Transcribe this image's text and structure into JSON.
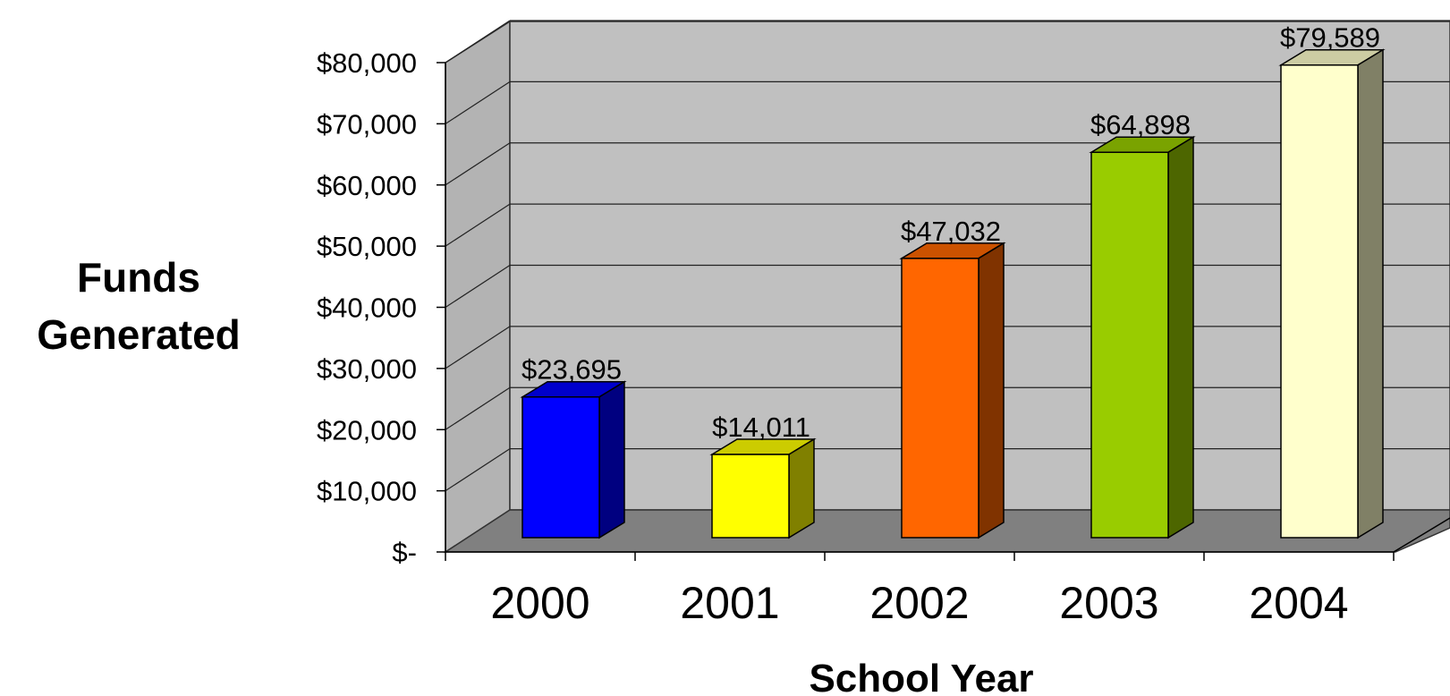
{
  "chart_data": {
    "type": "bar",
    "ylabel_line1": "Funds",
    "ylabel_line2": "Generated",
    "xlabel": "School Year",
    "categories": [
      "2000",
      "2001",
      "2002",
      "2003",
      "2004"
    ],
    "values": [
      23695,
      14011,
      47032,
      64898,
      79589
    ],
    "data_labels": [
      "$23,695",
      "$14,011",
      "$47,032",
      "$64,898",
      "$79,589"
    ],
    "yticks": [
      0,
      10000,
      20000,
      30000,
      40000,
      50000,
      60000,
      70000,
      80000
    ],
    "ytick_labels": [
      "$-",
      "$10,000",
      "$20,000",
      "$30,000",
      "$40,000",
      "$50,000",
      "$60,000",
      "$70,000",
      "$80,000"
    ],
    "ylim": [
      0,
      80000
    ],
    "grid": true,
    "three_d": true,
    "bar_colors": [
      {
        "front": "#0000ff",
        "top": "#0000cc",
        "side": "#000080"
      },
      {
        "front": "#ffff00",
        "top": "#cccc00",
        "side": "#808000"
      },
      {
        "front": "#ff6600",
        "top": "#cc5200",
        "side": "#803300"
      },
      {
        "front": "#99cc00",
        "top": "#7aa300",
        "side": "#4d6600"
      },
      {
        "front": "#ffffcc",
        "top": "#cccca3",
        "side": "#808066"
      }
    ],
    "wall_color": "#c0c0c0",
    "floor_color": "#808080"
  }
}
